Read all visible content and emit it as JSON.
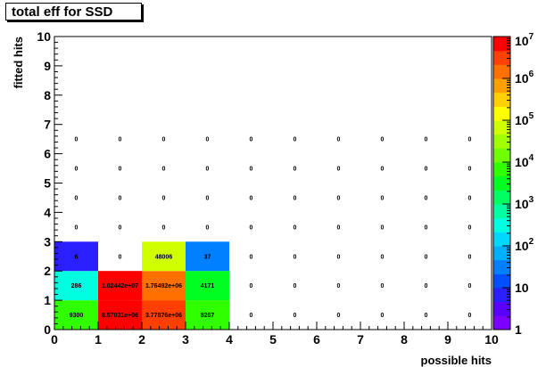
{
  "chart_data": {
    "type": "heatmap",
    "title": "total eff for SSD",
    "xlabel": "possible hits",
    "ylabel": "fitted hits",
    "xlim": [
      0,
      10
    ],
    "ylim": [
      0,
      10
    ],
    "x_ticks": [
      "0",
      "1",
      "2",
      "3",
      "4",
      "5",
      "6",
      "7",
      "8",
      "9",
      "10"
    ],
    "y_ticks": [
      "0",
      "1",
      "2",
      "3",
      "4",
      "5",
      "6",
      "7",
      "8",
      "9",
      "10"
    ],
    "z_scale": "log",
    "zlim": [
      1,
      10000000
    ],
    "z_ticks": [
      {
        "base": "1",
        "exp": ""
      },
      {
        "base": "10",
        "exp": ""
      },
      {
        "base": "10",
        "exp": "2"
      },
      {
        "base": "10",
        "exp": "3"
      },
      {
        "base": "10",
        "exp": "4"
      },
      {
        "base": "10",
        "exp": "5"
      },
      {
        "base": "10",
        "exp": "6"
      },
      {
        "base": "10",
        "exp": "7"
      }
    ],
    "grid": false,
    "legend": "right color palette",
    "cells": [
      {
        "x": 0,
        "y": 0,
        "value": 9300,
        "label": "9300"
      },
      {
        "x": 1,
        "y": 0,
        "value": 8570310,
        "label": "8.57031e+06"
      },
      {
        "x": 2,
        "y": 0,
        "value": 3778760,
        "label": "3.77876e+06"
      },
      {
        "x": 3,
        "y": 0,
        "value": 8267,
        "label": "8267"
      },
      {
        "x": 0,
        "y": 1,
        "value": 286,
        "label": "286"
      },
      {
        "x": 1,
        "y": 1,
        "value": 10244200,
        "label": "1.02442e+07"
      },
      {
        "x": 2,
        "y": 1,
        "value": 1764920,
        "label": "1.76492e+06"
      },
      {
        "x": 3,
        "y": 1,
        "value": 4171,
        "label": "4171"
      },
      {
        "x": 0,
        "y": 2,
        "value": 6,
        "label": "6"
      },
      {
        "x": 1,
        "y": 2,
        "value": 0,
        "label": "0"
      },
      {
        "x": 2,
        "y": 2,
        "value": 48006,
        "label": "48006"
      },
      {
        "x": 3,
        "y": 2,
        "value": 37,
        "label": "37"
      }
    ],
    "zero_label": "0"
  },
  "palette_colors": [
    "#7d00ff",
    "#5a00ff",
    "#2a20ff",
    "#0050ff",
    "#0080ff",
    "#00b0ff",
    "#00d8ff",
    "#00ffe0",
    "#00ffa0",
    "#00ff60",
    "#00ff20",
    "#30ff00",
    "#70ff00",
    "#a0ff00",
    "#d0ff00",
    "#ffff00",
    "#ffd000",
    "#ffa000",
    "#ff7000",
    "#ff4000",
    "#ff0000"
  ]
}
